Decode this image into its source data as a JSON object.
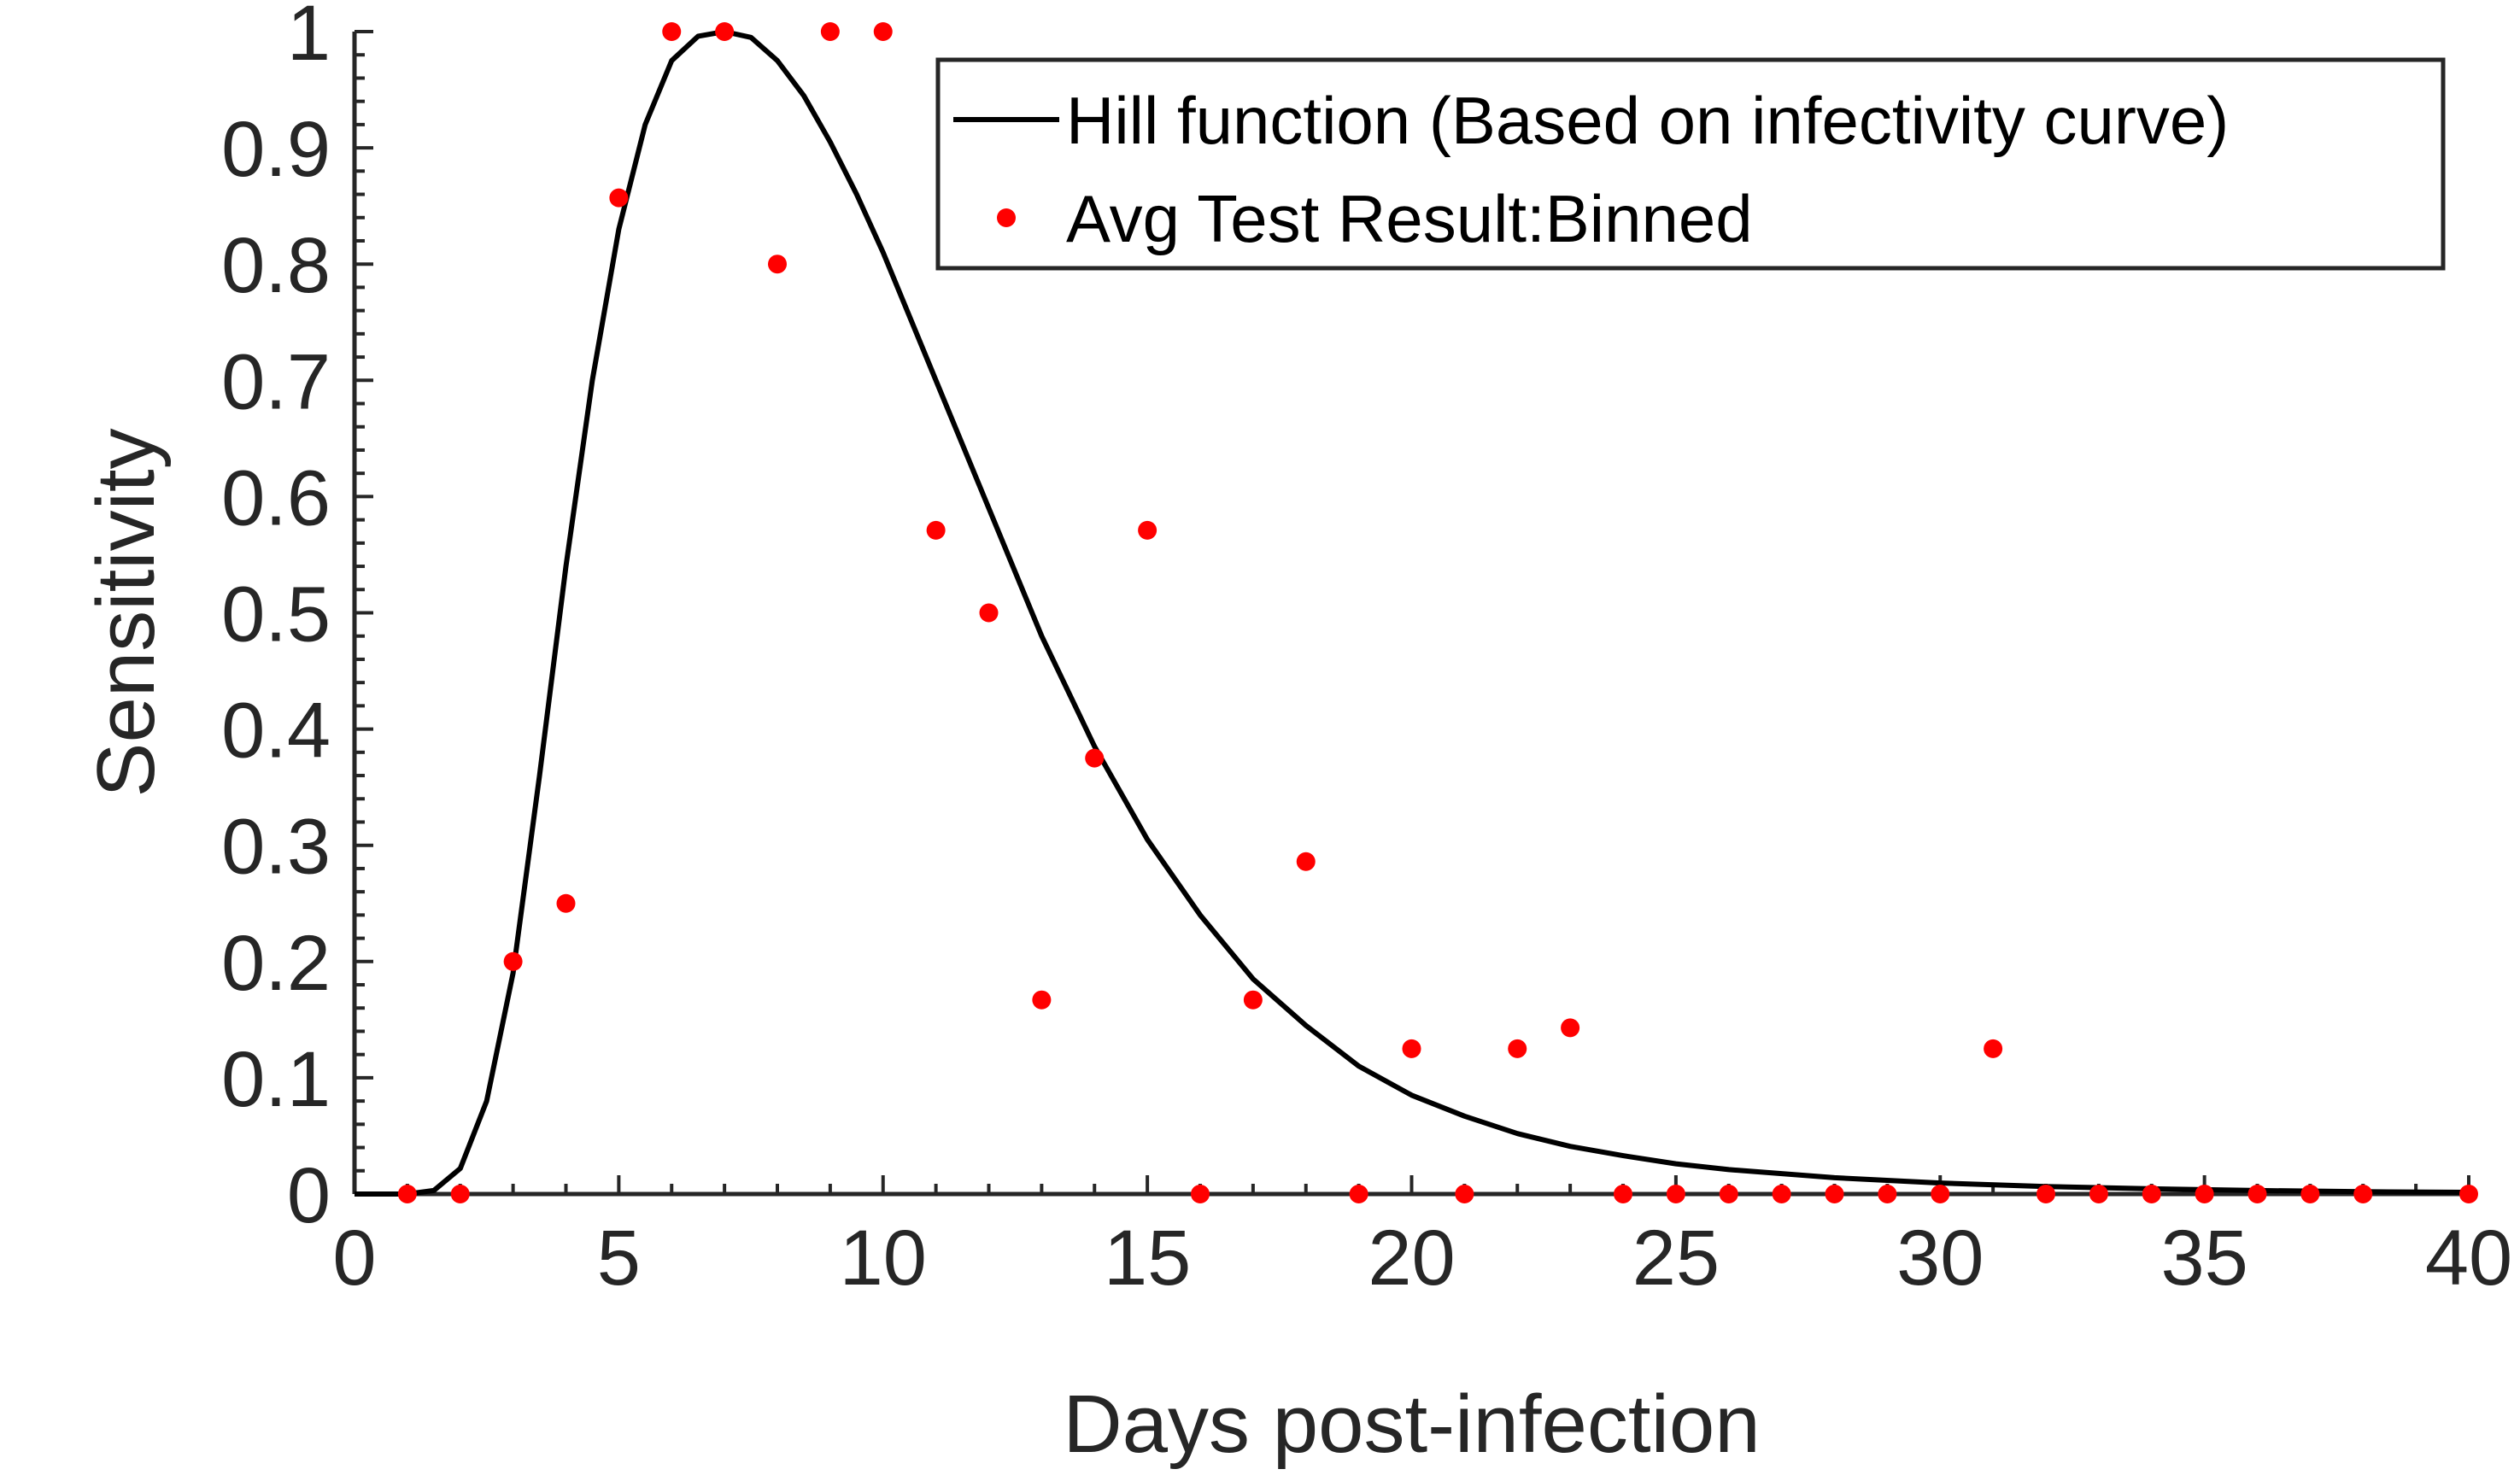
{
  "chart_data": {
    "type": "scatter",
    "xlabel": "Days post-infection",
    "ylabel": "Sensitivity",
    "xlim": [
      0,
      40
    ],
    "ylim": [
      0,
      1
    ],
    "x_ticks": [
      "0",
      "5",
      "10",
      "15",
      "20",
      "25",
      "30",
      "35",
      "40"
    ],
    "y_ticks": [
      "0",
      "0.1",
      "0.2",
      "0.3",
      "0.4",
      "0.5",
      "0.6",
      "0.7",
      "0.8",
      "0.9",
      "1"
    ],
    "grid": false,
    "legend_position": "top-right",
    "series": [
      {
        "name": "Hill function (Based on infectivity curve)",
        "kind": "line",
        "color": "#000000",
        "points": [
          [
            0,
            0.0
          ],
          [
            1,
            0.0
          ],
          [
            1.5,
            0.003
          ],
          [
            2,
            0.022
          ],
          [
            2.5,
            0.08
          ],
          [
            3,
            0.19
          ],
          [
            3.5,
            0.36
          ],
          [
            4,
            0.54
          ],
          [
            4.5,
            0.7
          ],
          [
            5,
            0.83
          ],
          [
            5.5,
            0.92
          ],
          [
            6,
            0.975
          ],
          [
            6.5,
            0.996
          ],
          [
            7,
            1.0
          ],
          [
            7.5,
            0.995
          ],
          [
            8,
            0.975
          ],
          [
            8.5,
            0.945
          ],
          [
            9,
            0.905
          ],
          [
            9.5,
            0.86
          ],
          [
            10,
            0.81
          ],
          [
            11,
            0.7
          ],
          [
            12,
            0.59
          ],
          [
            13,
            0.48
          ],
          [
            14,
            0.385
          ],
          [
            15,
            0.305
          ],
          [
            16,
            0.24
          ],
          [
            17,
            0.185
          ],
          [
            18,
            0.145
          ],
          [
            19,
            0.11
          ],
          [
            20,
            0.085
          ],
          [
            21,
            0.067
          ],
          [
            22,
            0.052
          ],
          [
            23,
            0.041
          ],
          [
            24,
            0.033
          ],
          [
            25,
            0.026
          ],
          [
            26,
            0.021
          ],
          [
            28,
            0.014
          ],
          [
            30,
            0.0095
          ],
          [
            32,
            0.0065
          ],
          [
            34,
            0.0045
          ],
          [
            36,
            0.003
          ],
          [
            38,
            0.002
          ],
          [
            40,
            0.0015
          ]
        ]
      },
      {
        "name": "Avg Test Result:Binned",
        "kind": "scatter",
        "color": "#ff0000",
        "points": [
          [
            1,
            0.0
          ],
          [
            2,
            0.0
          ],
          [
            3,
            0.2
          ],
          [
            4,
            0.25
          ],
          [
            5,
            0.857
          ],
          [
            6,
            1.0
          ],
          [
            7,
            1.0
          ],
          [
            8,
            0.8
          ],
          [
            9,
            1.0
          ],
          [
            10,
            1.0
          ],
          [
            11,
            0.571
          ],
          [
            12,
            0.5
          ],
          [
            13,
            0.167
          ],
          [
            14,
            0.375
          ],
          [
            15,
            0.571
          ],
          [
            16,
            0.0
          ],
          [
            17,
            0.167
          ],
          [
            18,
            0.286
          ],
          [
            19,
            0.0
          ],
          [
            20,
            0.125
          ],
          [
            21,
            0.0
          ],
          [
            22,
            0.125
          ],
          [
            23,
            0.143
          ],
          [
            24,
            0.0
          ],
          [
            25,
            0.0
          ],
          [
            26,
            0.0
          ],
          [
            27,
            0.0
          ],
          [
            28,
            0.0
          ],
          [
            29,
            0.0
          ],
          [
            30,
            0.0
          ],
          [
            31,
            0.125
          ],
          [
            32,
            0.0
          ],
          [
            33,
            0.0
          ],
          [
            34,
            0.0
          ],
          [
            35,
            0.0
          ],
          [
            36,
            0.0
          ],
          [
            37,
            0.0
          ],
          [
            38,
            0.0
          ],
          [
            40,
            0.0
          ]
        ]
      }
    ]
  }
}
